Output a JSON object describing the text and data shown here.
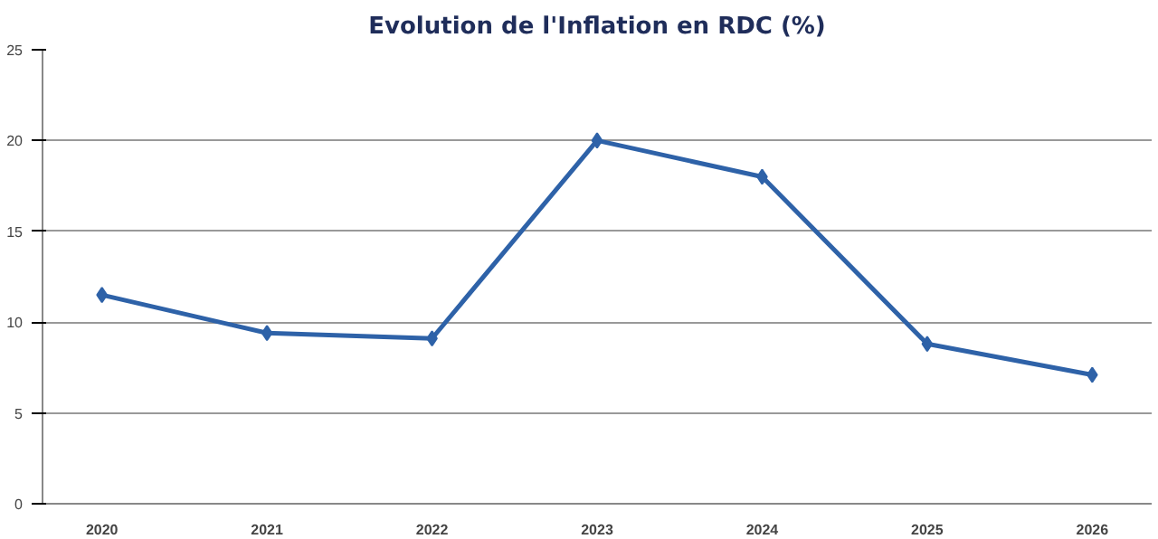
{
  "chart_data": {
    "type": "line",
    "title": "Evolution de l'Inflation en RDC (%)",
    "categories": [
      "2020",
      "2021",
      "2022",
      "2023",
      "2024",
      "2025",
      "2026"
    ],
    "series": [
      {
        "color": "#2e62a8",
        "values": [
          11.5,
          9.4,
          9.1,
          20.0,
          18.0,
          8.8,
          7.1
        ]
      }
    ],
    "ylim": [
      0,
      25
    ],
    "yticks": [
      0,
      5,
      10,
      15,
      20,
      25
    ],
    "grid": "y",
    "marker": "diamond",
    "line_style": "solid"
  }
}
